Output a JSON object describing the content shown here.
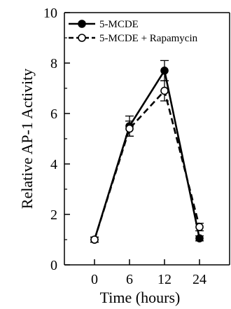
{
  "chart_data": {
    "type": "line",
    "categories": [
      "0",
      "6",
      "12",
      "24"
    ],
    "series": [
      {
        "name": "5-MCDE",
        "values": [
          1.0,
          5.5,
          7.7,
          1.05
        ],
        "errors": [
          0.1,
          0.4,
          0.4,
          0.1
        ],
        "line_style": "solid",
        "marker": "filled-circle",
        "color": "#000000"
      },
      {
        "name": "5-MCDE + Rapamycin",
        "values": [
          1.0,
          5.4,
          6.9,
          1.5
        ],
        "errors": [
          0.1,
          0.3,
          0.4,
          0.15
        ],
        "line_style": "dashed",
        "marker": "open-circle",
        "color": "#000000"
      }
    ],
    "xlabel": "Time (hours)",
    "ylabel": "Relative AP-1 Activity",
    "ylim": [
      0,
      10
    ],
    "yticks": [
      "0",
      "2",
      "4",
      "6",
      "8",
      "10"
    ],
    "grid": false,
    "legend_position": "top-left"
  }
}
